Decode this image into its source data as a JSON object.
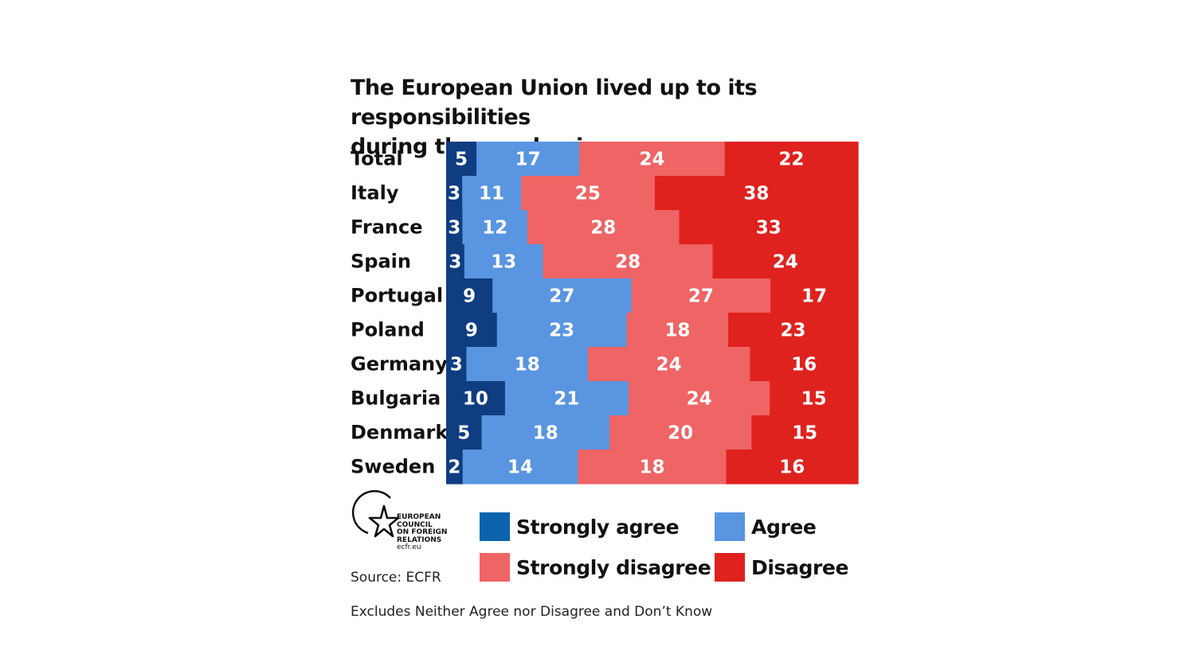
{
  "title_lines": [
    "The European Union lived up to its responsibilities",
    "during the pandemic"
  ],
  "chart_data": {
    "type": "bar",
    "orientation": "horizontal",
    "stacked": true,
    "title": "The European Union lived up to its responsibilities during the pandemic",
    "categories": [
      "Total",
      "Italy",
      "France",
      "Spain",
      "Portugal",
      "Poland",
      "Germany",
      "Bulgaria",
      "Denmark",
      "Sweden"
    ],
    "series": [
      {
        "name": "Strongly agree",
        "color": "#0e3d80",
        "values": [
          5,
          3,
          3,
          3,
          9,
          9,
          3,
          10,
          5,
          2
        ]
      },
      {
        "name": "Agree",
        "color": "#5995e0",
        "values": [
          17,
          11,
          12,
          13,
          27,
          23,
          18,
          21,
          18,
          14
        ]
      },
      {
        "name": "Strongly disagree",
        "color": "#ef6464",
        "values": [
          24,
          25,
          28,
          28,
          27,
          18,
          24,
          24,
          20,
          18
        ]
      },
      {
        "name": "Disagree",
        "color": "#df221e",
        "values": [
          22,
          38,
          33,
          24,
          17,
          23,
          16,
          15,
          15,
          16
        ]
      }
    ],
    "note": "Excludes Neither Agree nor Disagree and Don't Know"
  },
  "legend": [
    {
      "label": "Strongly agree",
      "color": "#0b63ad"
    },
    {
      "label": "Agree",
      "color": "#5995e0"
    },
    {
      "label": "Strongly disagree",
      "color": "#ef6464"
    },
    {
      "label": "Disagree",
      "color": "#df221e"
    }
  ],
  "logo": {
    "lines": [
      "EUROPEAN",
      "COUNCIL",
      "ON FOREIGN",
      "RELATIONS"
    ],
    "url_text": "ecfr.eu"
  },
  "source": "Source: ECFR",
  "footnote": "Excludes Neither Agree nor Disagree and Don’t Know"
}
